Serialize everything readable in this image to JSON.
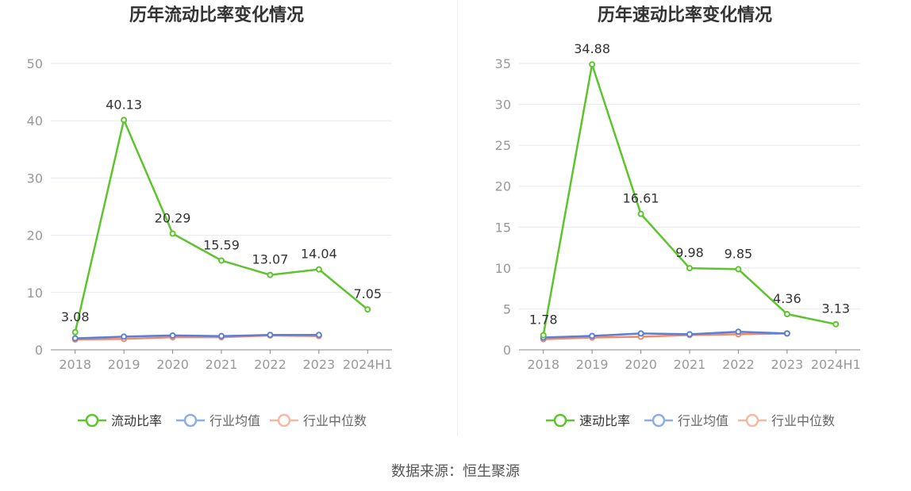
{
  "colors": {
    "main": "#5ec42e",
    "avg": "#5a7fd6",
    "median": "#f08a6a",
    "avg_legend": "#8aaee8",
    "median_legend": "#f5b8a2",
    "grid": "#e6e8f0",
    "axis": "#999999",
    "label": "#333333"
  },
  "chart_data": [
    {
      "type": "line",
      "title": "历年流动比率变化情况",
      "categories": [
        "2018",
        "2019",
        "2020",
        "2021",
        "2022",
        "2023",
        "2024H1"
      ],
      "ylim": [
        0,
        50
      ],
      "yticks": [
        "0",
        "10",
        "20",
        "30",
        "40",
        "50"
      ],
      "grid": true,
      "legend_position": "bottom",
      "series": [
        {
          "name": "流动比率",
          "values": [
            3.08,
            40.13,
            20.29,
            15.59,
            13.07,
            14.04,
            7.05
          ],
          "labels": [
            "3.08",
            "40.13",
            "20.29",
            "15.59",
            "13.07",
            "14.04",
            "7.05"
          ]
        },
        {
          "name": "行业均值",
          "values": [
            2.0,
            2.3,
            2.5,
            2.4,
            2.6,
            2.6,
            null
          ]
        },
        {
          "name": "行业中位数",
          "values": [
            1.8,
            1.9,
            2.2,
            2.2,
            2.5,
            2.4,
            null
          ]
        }
      ]
    },
    {
      "type": "line",
      "title": "历年速动比率变化情况",
      "categories": [
        "2018",
        "2019",
        "2020",
        "2021",
        "2022",
        "2023",
        "2024H1"
      ],
      "ylim": [
        0,
        35
      ],
      "yticks": [
        "0",
        "5",
        "10",
        "15",
        "20",
        "25",
        "30",
        "35"
      ],
      "grid": true,
      "legend_position": "bottom",
      "series": [
        {
          "name": "速动比率",
          "values": [
            1.78,
            34.88,
            16.61,
            9.98,
            9.85,
            4.36,
            3.13
          ],
          "labels": [
            "1.78",
            "34.88",
            "16.61",
            "9.98",
            "9.85",
            "4.36",
            "3.13"
          ]
        },
        {
          "name": "行业均值",
          "values": [
            1.5,
            1.7,
            2.0,
            1.9,
            2.2,
            2.0,
            null
          ]
        },
        {
          "name": "行业中位数",
          "values": [
            1.3,
            1.5,
            1.6,
            1.8,
            1.9,
            2.0,
            null
          ]
        }
      ]
    }
  ],
  "source": "数据来源：恒生聚源"
}
